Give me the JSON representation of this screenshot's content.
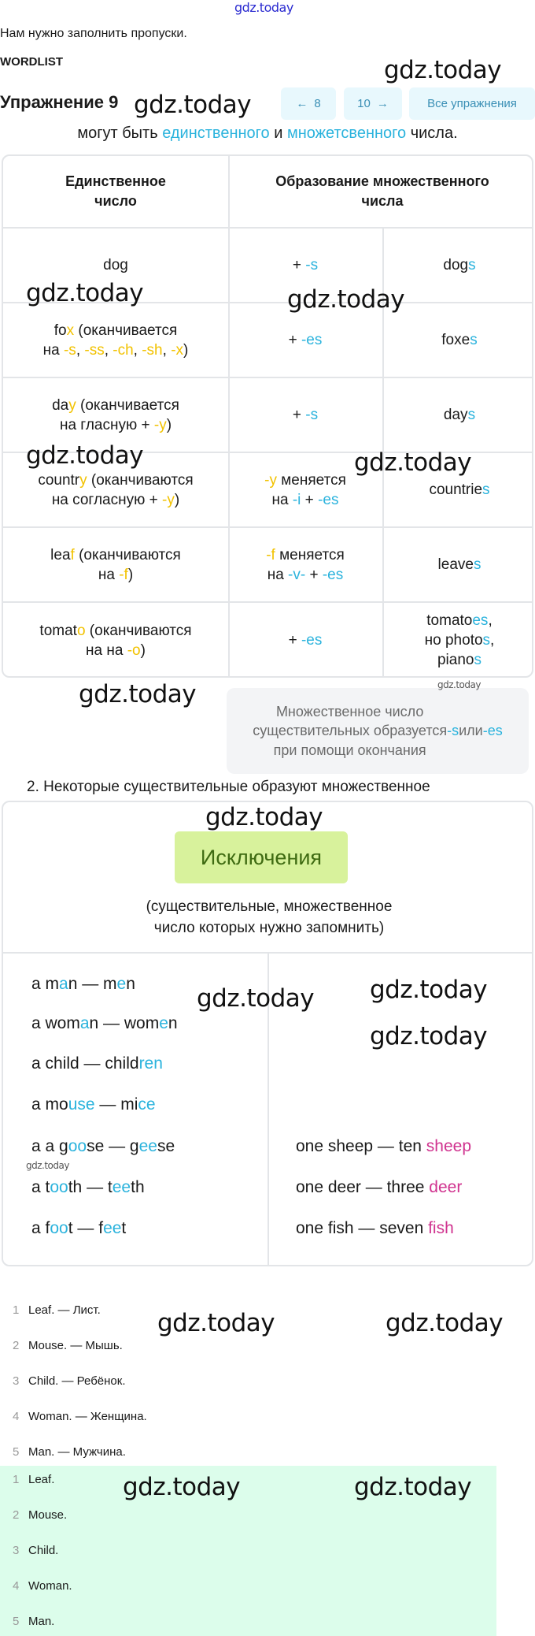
{
  "watermark": "gdz.today",
  "intro": "Нам нужно заполнить пропуски.",
  "wordlist_label": "WORDLIST",
  "header": {
    "title": "Упражнение 9",
    "prev": {
      "arrow": "←",
      "label": "8"
    },
    "next": {
      "label": "10",
      "arrow": "→"
    },
    "all_label": "Все упражнения"
  },
  "colors": {
    "blue": "#2bb3dd",
    "yellow": "#f2c200",
    "magenta": "#d0338f",
    "pill_bg": "#d8f29c",
    "answer_bg": "#dcfdeb"
  },
  "rule_line": [
    [
      "могут быть ",
      ""
    ],
    [
      "единственного",
      "b"
    ],
    [
      " и ",
      ""
    ],
    [
      "множетсвенного",
      "b"
    ],
    [
      " числа.",
      ""
    ]
  ],
  "table1": {
    "headers": [
      "Единственное\nчисло",
      "Образование множественного\nчисла"
    ],
    "rows": [
      {
        "singular": [
          [
            "dog",
            ""
          ]
        ],
        "rule": [
          [
            "+ ",
            ""
          ],
          [
            "-s",
            "b"
          ]
        ],
        "plural": [
          [
            "dog",
            ""
          ],
          [
            "s",
            "b"
          ]
        ]
      },
      {
        "singular": [
          [
            "fo",
            ""
          ],
          [
            "x",
            "y"
          ],
          [
            " (оканчивается\nна ",
            ""
          ],
          [
            "-s",
            "y"
          ],
          [
            ", ",
            ""
          ],
          [
            "-ss",
            "y"
          ],
          [
            ", ",
            ""
          ],
          [
            "-ch",
            "y"
          ],
          [
            ", ",
            ""
          ],
          [
            "-sh",
            "y"
          ],
          [
            ", ",
            ""
          ],
          [
            "-x",
            "y"
          ],
          [
            ")",
            ""
          ]
        ],
        "rule": [
          [
            "+ ",
            ""
          ],
          [
            "-es",
            "b"
          ]
        ],
        "plural": [
          [
            "foxe",
            ""
          ],
          [
            "s",
            "b"
          ]
        ]
      },
      {
        "singular": [
          [
            "da",
            ""
          ],
          [
            "y",
            "y"
          ],
          [
            " (оканчивается\nна гласную + ",
            ""
          ],
          [
            "-y",
            "y"
          ],
          [
            ")",
            ""
          ]
        ],
        "rule": [
          [
            "+ ",
            ""
          ],
          [
            "-s",
            "b"
          ]
        ],
        "plural": [
          [
            "day",
            ""
          ],
          [
            "s",
            "b"
          ]
        ]
      },
      {
        "singular": [
          [
            "countr",
            ""
          ],
          [
            "y",
            "y"
          ],
          [
            " (оканчиваются\nна согласную + ",
            ""
          ],
          [
            "-y",
            "y"
          ],
          [
            ")",
            ""
          ]
        ],
        "rule": [
          [
            "-y",
            "y"
          ],
          [
            " меняется\nна ",
            ""
          ],
          [
            "-i",
            "b"
          ],
          [
            " + ",
            ""
          ],
          [
            "-es",
            "b"
          ]
        ],
        "plural": [
          [
            "countrie",
            ""
          ],
          [
            "s",
            "b"
          ]
        ]
      },
      {
        "singular": [
          [
            "lea",
            ""
          ],
          [
            "f",
            "y"
          ],
          [
            " (оканчиваются\nна ",
            ""
          ],
          [
            "-f",
            "y"
          ],
          [
            ")",
            ""
          ]
        ],
        "rule": [
          [
            "-f",
            "y"
          ],
          [
            " меняется\nна ",
            ""
          ],
          [
            "-v-",
            "b"
          ],
          [
            " + ",
            ""
          ],
          [
            "-es",
            "b"
          ]
        ],
        "plural": [
          [
            "leave",
            ""
          ],
          [
            "s",
            "b"
          ]
        ]
      },
      {
        "singular": [
          [
            "tomat",
            ""
          ],
          [
            "o",
            "y"
          ],
          [
            " (оканчиваются\nна на ",
            ""
          ],
          [
            "-o",
            "y"
          ],
          [
            ")",
            ""
          ]
        ],
        "rule": [
          [
            "+ ",
            ""
          ],
          [
            "-es",
            "b"
          ]
        ],
        "plural": [
          [
            "tomato",
            ""
          ],
          [
            "es",
            "b"
          ],
          [
            ",\nно photo",
            ""
          ],
          [
            "s",
            "b"
          ],
          [
            ",\npiano",
            ""
          ],
          [
            "s",
            "b"
          ]
        ]
      }
    ]
  },
  "note": [
    [
      "Множественное число\nсуществительных образуется\nпри помощи окончания ",
      ""
    ],
    [
      "-s",
      "b"
    ],
    [
      " или ",
      ""
    ],
    [
      "-es",
      "b"
    ]
  ],
  "section2_text": "2. Некоторые существительные образуют множественное",
  "table2": {
    "title": "Исключения",
    "subtitle": "(существительные, множественное\nчисло которых нужно запомнить)",
    "left": [
      [
        [
          "a m",
          ""
        ],
        [
          "a",
          "b"
        ],
        [
          "n — m",
          ""
        ],
        [
          "e",
          "b"
        ],
        [
          "n",
          ""
        ]
      ],
      [
        [
          "a wom",
          ""
        ],
        [
          "a",
          "b"
        ],
        [
          "n — wom",
          ""
        ],
        [
          "e",
          "b"
        ],
        [
          "n",
          ""
        ]
      ],
      [
        [
          "a child — child",
          ""
        ],
        [
          "ren",
          "b"
        ]
      ],
      [
        [
          "a mo",
          ""
        ],
        [
          "use",
          "b"
        ],
        [
          " — mi",
          ""
        ],
        [
          "ce",
          "b"
        ]
      ],
      [
        [
          "a a g",
          ""
        ],
        [
          "oo",
          "b"
        ],
        [
          "se — g",
          ""
        ],
        [
          "ee",
          "b"
        ],
        [
          "se",
          ""
        ]
      ],
      [
        [
          "a t",
          ""
        ],
        [
          "oo",
          "b"
        ],
        [
          "th — t",
          ""
        ],
        [
          "ee",
          "b"
        ],
        [
          "th",
          ""
        ]
      ],
      [
        [
          "a f",
          ""
        ],
        [
          "oo",
          "b"
        ],
        [
          "t — f",
          ""
        ],
        [
          "ee",
          "b"
        ],
        [
          "t",
          ""
        ]
      ]
    ],
    "right": [
      [
        [
          "one sheep — ten ",
          ""
        ],
        [
          "sheep",
          "m"
        ]
      ],
      [
        [
          "one deer — three ",
          ""
        ],
        [
          "deer",
          "m"
        ]
      ],
      [
        [
          "one fish — seven ",
          ""
        ],
        [
          "fish",
          "m"
        ]
      ]
    ]
  },
  "translations": [
    {
      "n": "1",
      "text": "Leaf. — Лист."
    },
    {
      "n": "2",
      "text": "Mouse. — Мышь."
    },
    {
      "n": "3",
      "text": "Child. — Ребёнок."
    },
    {
      "n": "4",
      "text": "Woman. — Женщина."
    },
    {
      "n": "5",
      "text": "Man. — Мужчина."
    }
  ],
  "answers": [
    {
      "n": "1",
      "text": "Leaf."
    },
    {
      "n": "2",
      "text": "Mouse."
    },
    {
      "n": "3",
      "text": "Child."
    },
    {
      "n": "4",
      "text": "Woman."
    },
    {
      "n": "5",
      "text": "Man."
    }
  ]
}
